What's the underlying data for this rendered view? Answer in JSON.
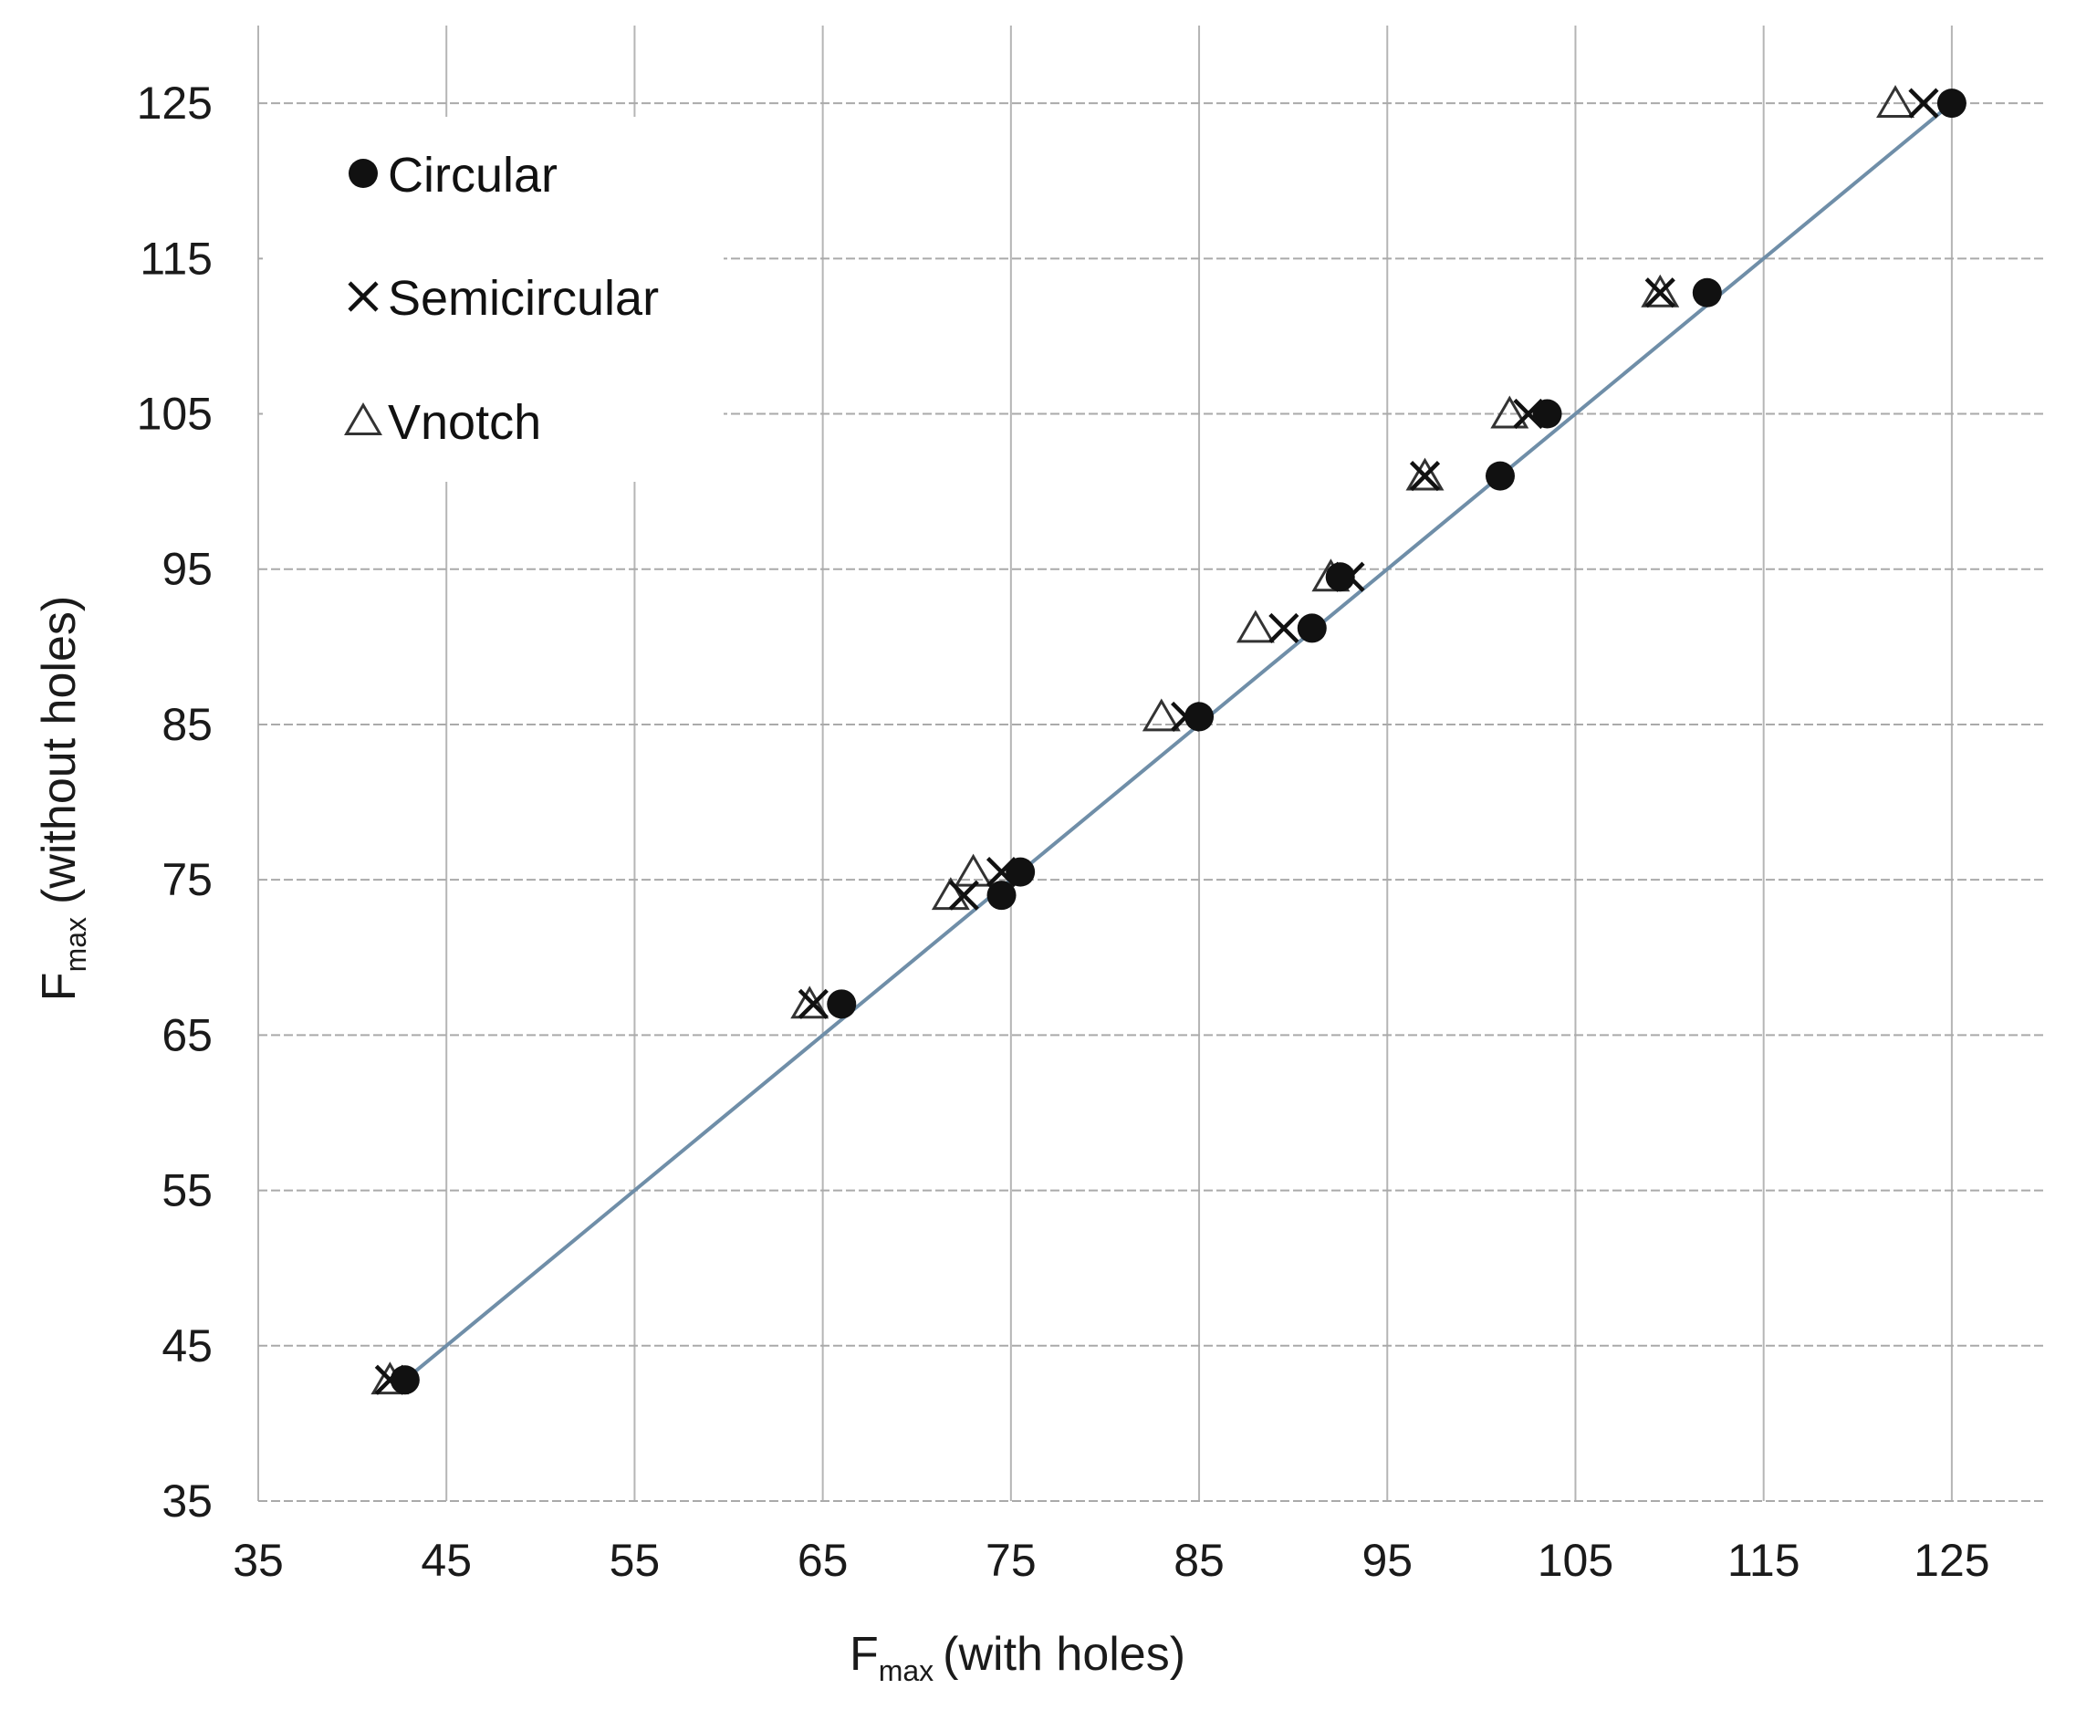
{
  "chart_data": {
    "type": "scatter",
    "x_label": {
      "main": "F",
      "sub": "max",
      "rest": "(with holes)"
    },
    "y_label": {
      "main": "F",
      "sub": "max",
      "rest": "(without holes)"
    },
    "xlim": [
      35,
      130
    ],
    "ylim": [
      35,
      130
    ],
    "x_ticks": [
      35,
      45,
      55,
      65,
      75,
      85,
      95,
      105,
      115,
      125
    ],
    "y_ticks": [
      35,
      45,
      55,
      65,
      75,
      85,
      95,
      105,
      115,
      125
    ],
    "grid": true,
    "legend_position": "top-left",
    "reference_line": {
      "x": [
        43,
        125
      ],
      "y": [
        43,
        125
      ],
      "color": "#6f8ea8"
    },
    "series": [
      {
        "name": "Circular",
        "marker": "filled-circle",
        "color": "#111111",
        "points": [
          [
            42.8,
            42.8
          ],
          [
            66,
            67
          ],
          [
            74.5,
            74
          ],
          [
            75.5,
            75.5
          ],
          [
            85,
            85.5
          ],
          [
            91,
            91.2
          ],
          [
            92.5,
            94.5
          ],
          [
            101,
            101
          ],
          [
            103.5,
            105
          ],
          [
            112,
            112.8
          ],
          [
            125,
            125
          ]
        ]
      },
      {
        "name": "Semicircular",
        "marker": "x",
        "color": "#111111",
        "points": [
          [
            42,
            42.8
          ],
          [
            64.5,
            67
          ],
          [
            72.5,
            74
          ],
          [
            74.5,
            75.5
          ],
          [
            84.3,
            85.5
          ],
          [
            89.5,
            91.2
          ],
          [
            93,
            94.5
          ],
          [
            97,
            101
          ],
          [
            102.5,
            105
          ],
          [
            109.5,
            112.8
          ],
          [
            123.5,
            125
          ]
        ]
      },
      {
        "name": "Vnotch",
        "marker": "open-triangle",
        "color": "#333333",
        "points": [
          [
            42,
            42.8
          ],
          [
            64.3,
            67
          ],
          [
            71.8,
            74
          ],
          [
            73,
            75.5
          ],
          [
            83,
            85.5
          ],
          [
            88,
            91.2
          ],
          [
            92,
            94.5
          ],
          [
            97,
            101
          ],
          [
            101.5,
            105
          ],
          [
            109.5,
            112.8
          ],
          [
            122,
            125
          ]
        ]
      }
    ]
  }
}
